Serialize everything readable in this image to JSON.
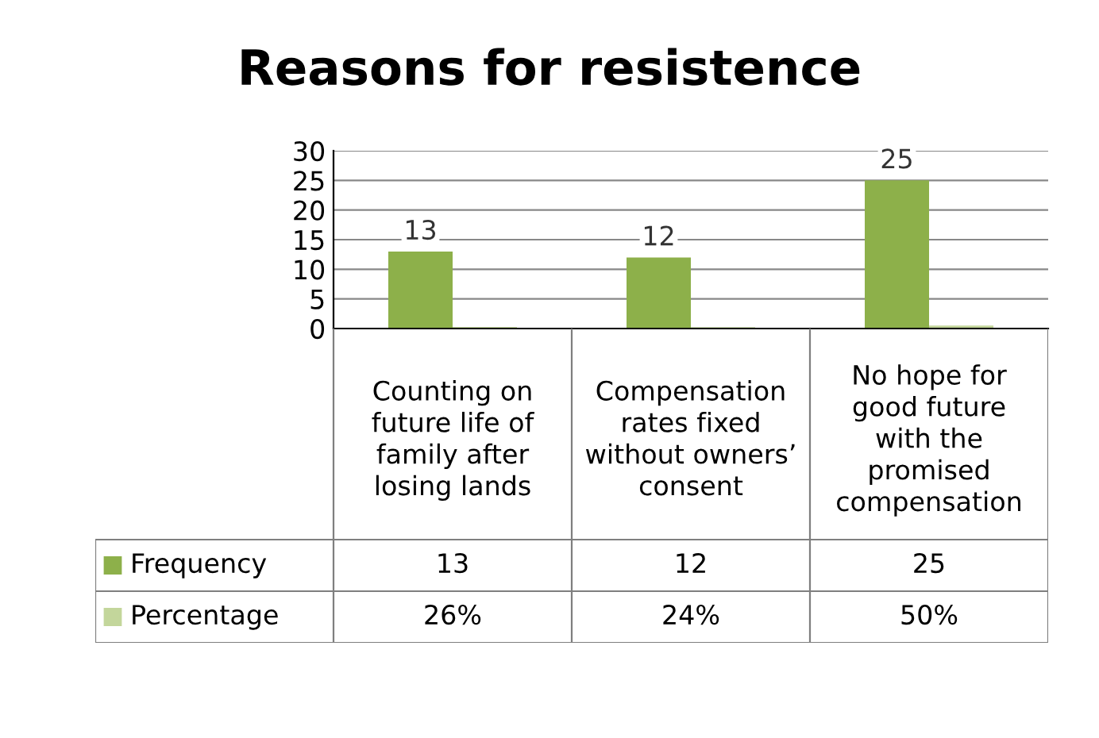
{
  "chart_data": {
    "type": "bar",
    "title": "Reasons for resistence",
    "categories": [
      "Counting on future life of family after losing lands",
      "Compensation rates fixed without owners’ consent",
      "No hope for good future with the promised compensation"
    ],
    "series": [
      {
        "name": "Frequency",
        "color": "#8db04a",
        "values": [
          13,
          12,
          25
        ],
        "value_labels": [
          "13",
          "12",
          "25"
        ]
      },
      {
        "name": "Percentage",
        "color": "#c3d69b",
        "values": [
          0.26,
          0.24,
          0.5
        ],
        "value_labels": [
          "26%",
          "24%",
          "50%"
        ]
      }
    ],
    "ylim": [
      0,
      30
    ],
    "yticks": [
      0,
      5,
      10,
      15,
      20,
      25,
      30
    ],
    "grid": "y",
    "legend": "bottom"
  }
}
